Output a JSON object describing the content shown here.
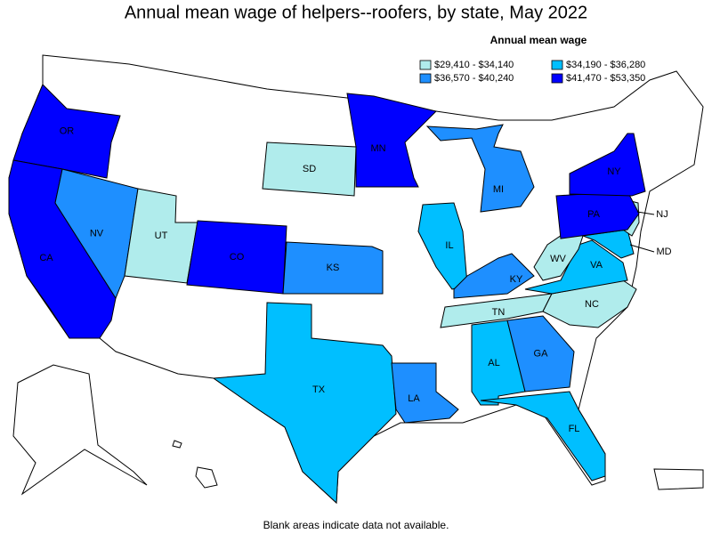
{
  "title": "Annual mean wage of helpers--roofers, by state, May 2022",
  "legend": {
    "title": "Annual mean wage",
    "items": [
      {
        "label": "$29,410 - $34,140",
        "color": "#b0ecec"
      },
      {
        "label": "$34,190 - $36,280",
        "color": "#00bfff"
      },
      {
        "label": "$36,570 - $40,240",
        "color": "#1e8fff"
      },
      {
        "label": "$41,470 - $53,350",
        "color": "#0000ff"
      }
    ]
  },
  "states": [
    {
      "label": "OR",
      "color": "#0000ff"
    },
    {
      "label": "CA",
      "color": "#0000ff"
    },
    {
      "label": "NV",
      "color": "#1e8fff"
    },
    {
      "label": "UT",
      "color": "#b0ecec"
    },
    {
      "label": "CO",
      "color": "#0000ff"
    },
    {
      "label": "SD",
      "color": "#b0ecec"
    },
    {
      "label": "MN",
      "color": "#0000ff"
    },
    {
      "label": "KS",
      "color": "#1e8fff"
    },
    {
      "label": "TX",
      "color": "#00bfff"
    },
    {
      "label": "LA",
      "color": "#1e8fff"
    },
    {
      "label": "IL",
      "color": "#00bfff"
    },
    {
      "label": "MI",
      "color": "#1e8fff"
    },
    {
      "label": "KY",
      "color": "#1e8fff"
    },
    {
      "label": "TN",
      "color": "#b0ecec"
    },
    {
      "label": "AL",
      "color": "#00bfff"
    },
    {
      "label": "GA",
      "color": "#1e8fff"
    },
    {
      "label": "FL",
      "color": "#00bfff"
    },
    {
      "label": "NC",
      "color": "#b0ecec"
    },
    {
      "label": "VA",
      "color": "#00bfff"
    },
    {
      "label": "WV",
      "color": "#b0ecec"
    },
    {
      "label": "MD",
      "color": "#00bfff"
    },
    {
      "label": "NJ",
      "color": "#b0ecec"
    },
    {
      "label": "PA",
      "color": "#0000ff"
    },
    {
      "label": "NY",
      "color": "#0000ff"
    }
  ],
  "footnote": "Blank areas indicate data not available."
}
